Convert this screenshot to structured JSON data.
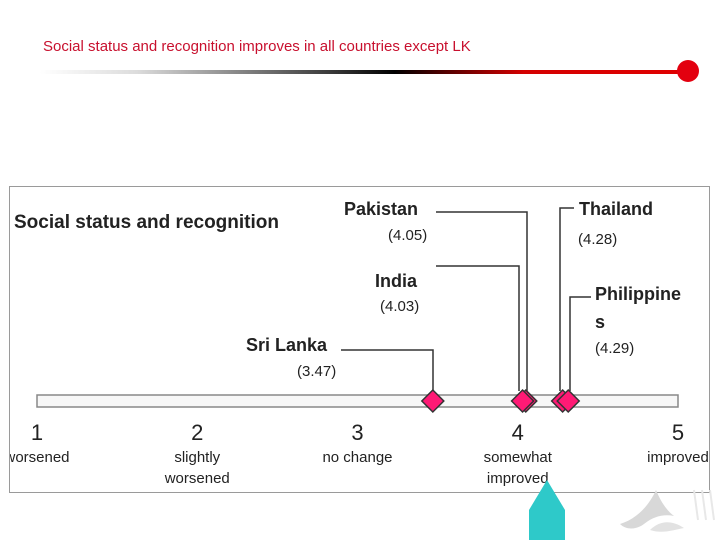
{
  "slide": {
    "title": "Social status and recognition improves in all countries except LK"
  },
  "colors": {
    "title_red": "#c8102e",
    "marker_fill": "#ff1a75",
    "marker_stroke": "#333333",
    "pointer_teal": "#2ec9c9"
  },
  "icons": {
    "pointer": "teal-arrow-icon",
    "logo": "organization-logo-icon"
  },
  "chart_data": {
    "type": "scatter",
    "title": "Social status and recognition",
    "xlim": [
      1,
      5
    ],
    "ticks": [
      {
        "value": 1,
        "label": "1",
        "caption": [
          "worsened"
        ]
      },
      {
        "value": 2,
        "label": "2",
        "caption": [
          "slightly",
          "worsened"
        ]
      },
      {
        "value": 3,
        "label": "3",
        "caption": [
          "no change"
        ]
      },
      {
        "value": 4,
        "label": "4",
        "caption": [
          "somewhat",
          "improved"
        ]
      },
      {
        "value": 5,
        "label": "5",
        "caption": [
          "improved"
        ]
      }
    ],
    "points": [
      {
        "country": "Pakistan",
        "value": 4.05,
        "value_label": "(4.05)"
      },
      {
        "country": "India",
        "value": 4.03,
        "value_label": "(4.03)"
      },
      {
        "country": "Sri Lanka",
        "value": 3.47,
        "value_label": "(3.47)"
      },
      {
        "country": "Thailand",
        "value": 4.28,
        "value_label": "(4.28)"
      },
      {
        "country": "Philippines",
        "country_lines": [
          "Philippine",
          "s"
        ],
        "value": 4.29,
        "value_label": "(4.29)"
      }
    ]
  }
}
